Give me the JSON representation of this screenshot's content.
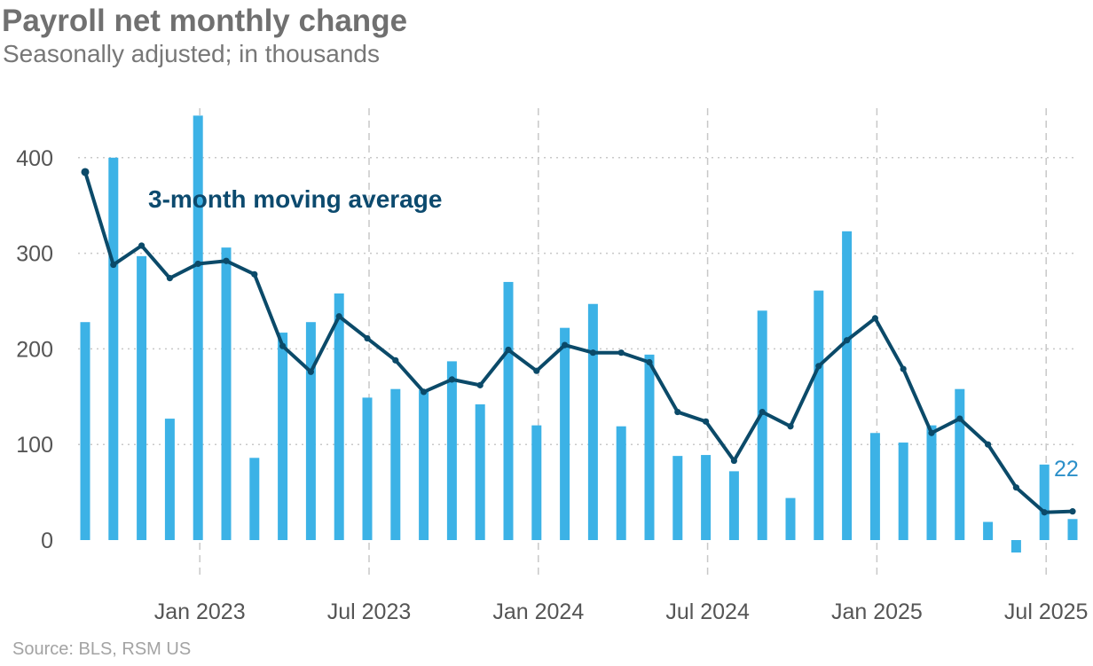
{
  "header": {
    "title": "Payroll net monthly change",
    "subtitle": "Seasonally adjusted; in thousands"
  },
  "footer": {
    "source": "Source: BLS, RSM US"
  },
  "colors": {
    "bar": "#3cb2e6",
    "line": "#0b4a69",
    "grid": "#c8c8c8",
    "last_label": "#2b8fc9"
  },
  "chart_data": {
    "type": "bar",
    "title": "Payroll net monthly change",
    "subtitle": "Seasonally adjusted; in thousands",
    "xlabel": "",
    "ylabel": "",
    "ylim": [
      -20,
      460
    ],
    "yticks": [
      0,
      100,
      200,
      300,
      400
    ],
    "x_tick_labels": [
      {
        "label": "Jan 2023",
        "month_index": 4
      },
      {
        "label": "Jul 2023",
        "month_index": 10
      },
      {
        "label": "Jan 2024",
        "month_index": 16
      },
      {
        "label": "Jul 2024",
        "month_index": 22
      },
      {
        "label": "Jan 2025",
        "month_index": 28
      },
      {
        "label": "Jul 2025",
        "month_index": 34
      }
    ],
    "categories": [
      "Sep 2022",
      "Oct 2022",
      "Nov 2022",
      "Dec 2022",
      "Jan 2023",
      "Feb 2023",
      "Mar 2023",
      "Apr 2023",
      "May 2023",
      "Jun 2023",
      "Jul 2023",
      "Aug 2023",
      "Sep 2023",
      "Oct 2023",
      "Nov 2023",
      "Dec 2023",
      "Jan 2024",
      "Feb 2024",
      "Mar 2024",
      "Apr 2024",
      "May 2024",
      "Jun 2024",
      "Jul 2024",
      "Aug 2024",
      "Sep 2024",
      "Oct 2024",
      "Nov 2024",
      "Dec 2024",
      "Jan 2025",
      "Feb 2025",
      "Mar 2025",
      "Apr 2025",
      "May 2025",
      "Jun 2025",
      "Jul 2025",
      "Aug 2025"
    ],
    "series": [
      {
        "name": "Monthly change",
        "type": "bar",
        "values": [
          228,
          400,
          297,
          127,
          444,
          306,
          86,
          217,
          228,
          258,
          149,
          158,
          157,
          187,
          142,
          270,
          120,
          222,
          247,
          119,
          194,
          88,
          89,
          72,
          240,
          44,
          261,
          323,
          112,
          102,
          120,
          158,
          19,
          -13,
          79,
          22
        ]
      },
      {
        "name": "3-month moving average",
        "type": "line",
        "values": [
          385,
          288,
          308,
          274,
          289,
          292,
          278,
          203,
          176,
          234,
          211,
          188,
          155,
          168,
          162,
          199,
          177,
          204,
          196,
          196,
          186,
          134,
          124,
          83,
          134,
          119,
          182,
          209,
          232,
          179,
          112,
          127,
          100,
          55,
          29,
          30
        ]
      }
    ],
    "annotations": [
      {
        "text": "3-month moving average"
      },
      {
        "text": "22"
      }
    ]
  }
}
